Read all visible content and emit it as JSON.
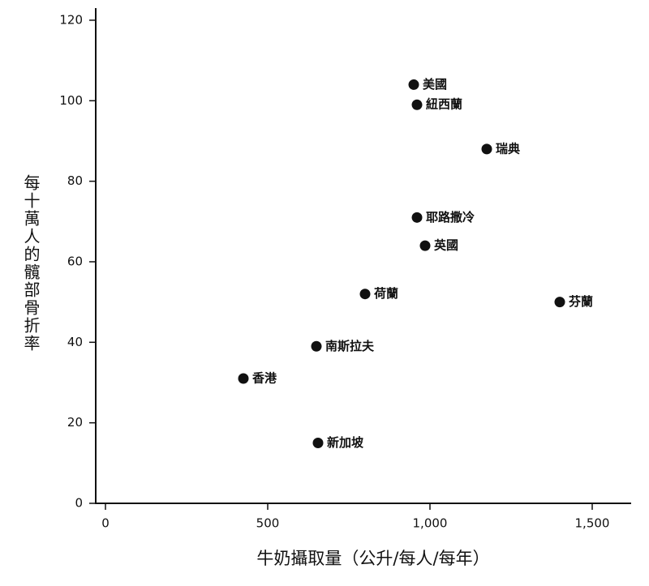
{
  "chart_data": {
    "type": "scatter",
    "x_label": "牛奶攝取量（公升/每人/每年）",
    "y_label": "每十萬人的髖部骨折率",
    "labels": [
      "美國",
      "紐西蘭",
      "瑞典",
      "耶路撒冷",
      "英國",
      "芬蘭",
      "荷蘭",
      "南斯拉夫",
      "香港",
      "新加坡"
    ],
    "x": [
      950,
      960,
      1175,
      960,
      985,
      1400,
      800,
      650,
      425,
      655
    ],
    "values": [
      104,
      99,
      88,
      71,
      64,
      50,
      52,
      39,
      31,
      15
    ],
    "color": "#111111",
    "xlim": [
      -30,
      1620
    ],
    "ylim": [
      0,
      122
    ],
    "xticks": [
      0,
      500,
      {
        "value": 1000,
        "label": "1,000"
      },
      {
        "value": 1500,
        "label": "1,500"
      }
    ],
    "yticks": [
      0,
      20,
      40,
      60,
      80,
      100,
      120
    ]
  }
}
